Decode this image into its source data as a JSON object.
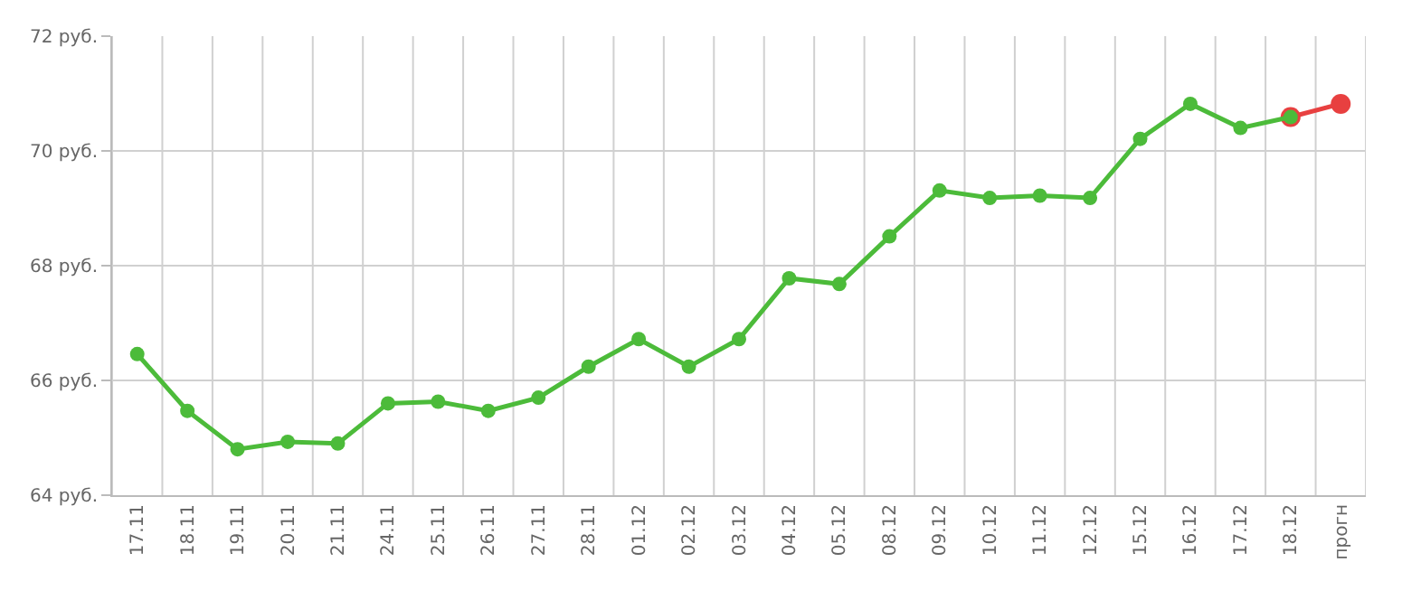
{
  "chart_data": {
    "type": "line",
    "categories": [
      "17.11",
      "18.11",
      "19.11",
      "20.11",
      "21.11",
      "24.11",
      "25.11",
      "26.11",
      "27.11",
      "28.11",
      "01.12",
      "02.12",
      "03.12",
      "04.12",
      "05.12",
      "08.12",
      "09.12",
      "10.12",
      "11.12",
      "12.12",
      "15.12",
      "16.12",
      "17.12",
      "18.12",
      "прогн"
    ],
    "series": [
      {
        "color": "#4cbb3a",
        "values": [
          66.46,
          65.47,
          64.8,
          64.93,
          64.9,
          65.6,
          65.63,
          65.47,
          65.7,
          66.24,
          66.72,
          66.24,
          66.72,
          67.78,
          67.68,
          68.51,
          69.31,
          69.18,
          69.22,
          69.18,
          70.21,
          70.82,
          70.4,
          70.59,
          null
        ]
      },
      {
        "color": "#e84040",
        "values": [
          null,
          null,
          null,
          null,
          null,
          null,
          null,
          null,
          null,
          null,
          null,
          null,
          null,
          null,
          null,
          null,
          null,
          null,
          null,
          null,
          null,
          null,
          null,
          70.59,
          70.82
        ]
      }
    ],
    "ylim": [
      64,
      72
    ],
    "yticks": [
      {
        "value": 64,
        "label": "64 руб."
      },
      {
        "value": 66,
        "label": "66 руб."
      },
      {
        "value": 68,
        "label": "68 руб."
      },
      {
        "value": 70,
        "label": "70 руб."
      },
      {
        "value": 72,
        "label": "72 руб."
      }
    ],
    "grid": true,
    "marker": "circle",
    "line_style": "solid"
  }
}
